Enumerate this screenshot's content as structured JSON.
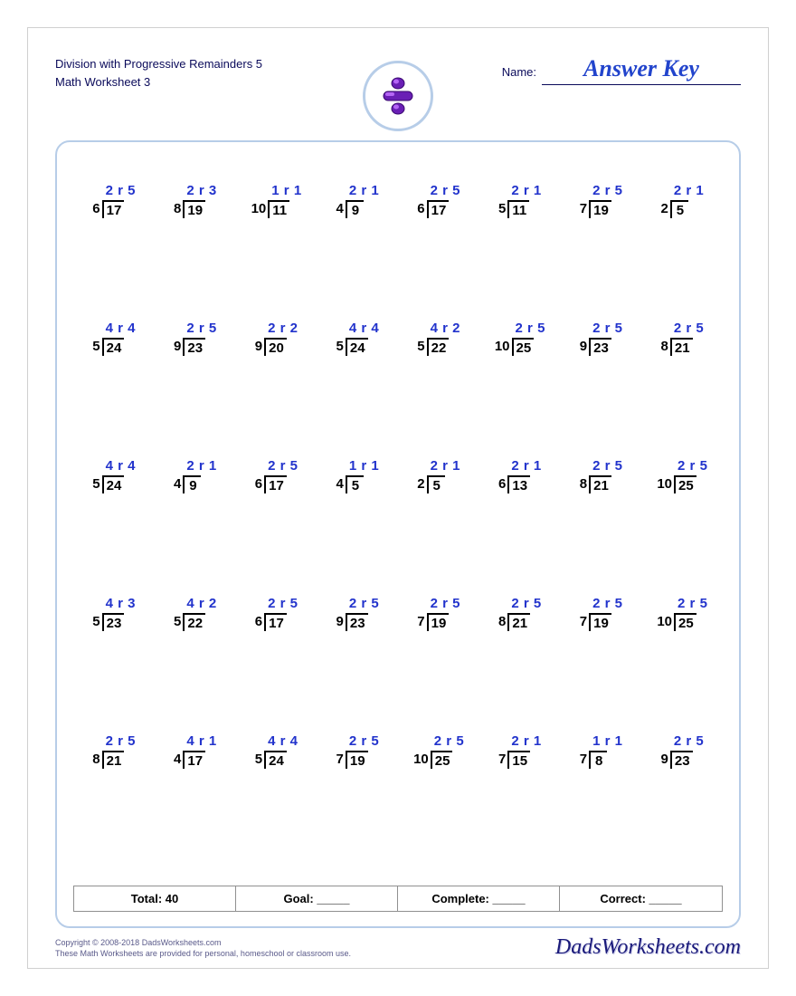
{
  "header": {
    "title_line1": "Division with Progressive Remainders 5",
    "title_line2": "Math Worksheet 3",
    "name_label": "Name:",
    "name_value": "Answer Key"
  },
  "colors": {
    "answer_color": "#2233cc",
    "title_color": "#0a0a5a",
    "frame_border": "#b7cde8",
    "text_color": "#000000"
  },
  "badge": {
    "primary": "#6a1fb5",
    "highlight": "#b565f5",
    "outline": "#3a0a70"
  },
  "problems": [
    [
      {
        "divisor": "6",
        "dividend": "17",
        "q": "2",
        "r": "5"
      },
      {
        "divisor": "8",
        "dividend": "19",
        "q": "2",
        "r": "3"
      },
      {
        "divisor": "10",
        "dividend": "11",
        "q": "1",
        "r": "1"
      },
      {
        "divisor": "4",
        "dividend": "9",
        "q": "2",
        "r": "1"
      },
      {
        "divisor": "6",
        "dividend": "17",
        "q": "2",
        "r": "5"
      },
      {
        "divisor": "5",
        "dividend": "11",
        "q": "2",
        "r": "1"
      },
      {
        "divisor": "7",
        "dividend": "19",
        "q": "2",
        "r": "5"
      },
      {
        "divisor": "2",
        "dividend": "5",
        "q": "2",
        "r": "1"
      }
    ],
    [
      {
        "divisor": "5",
        "dividend": "24",
        "q": "4",
        "r": "4"
      },
      {
        "divisor": "9",
        "dividend": "23",
        "q": "2",
        "r": "5"
      },
      {
        "divisor": "9",
        "dividend": "20",
        "q": "2",
        "r": "2"
      },
      {
        "divisor": "5",
        "dividend": "24",
        "q": "4",
        "r": "4"
      },
      {
        "divisor": "5",
        "dividend": "22",
        "q": "4",
        "r": "2"
      },
      {
        "divisor": "10",
        "dividend": "25",
        "q": "2",
        "r": "5"
      },
      {
        "divisor": "9",
        "dividend": "23",
        "q": "2",
        "r": "5"
      },
      {
        "divisor": "8",
        "dividend": "21",
        "q": "2",
        "r": "5"
      }
    ],
    [
      {
        "divisor": "5",
        "dividend": "24",
        "q": "4",
        "r": "4"
      },
      {
        "divisor": "4",
        "dividend": "9",
        "q": "2",
        "r": "1"
      },
      {
        "divisor": "6",
        "dividend": "17",
        "q": "2",
        "r": "5"
      },
      {
        "divisor": "4",
        "dividend": "5",
        "q": "1",
        "r": "1"
      },
      {
        "divisor": "2",
        "dividend": "5",
        "q": "2",
        "r": "1"
      },
      {
        "divisor": "6",
        "dividend": "13",
        "q": "2",
        "r": "1"
      },
      {
        "divisor": "8",
        "dividend": "21",
        "q": "2",
        "r": "5"
      },
      {
        "divisor": "10",
        "dividend": "25",
        "q": "2",
        "r": "5"
      }
    ],
    [
      {
        "divisor": "5",
        "dividend": "23",
        "q": "4",
        "r": "3"
      },
      {
        "divisor": "5",
        "dividend": "22",
        "q": "4",
        "r": "2"
      },
      {
        "divisor": "6",
        "dividend": "17",
        "q": "2",
        "r": "5"
      },
      {
        "divisor": "9",
        "dividend": "23",
        "q": "2",
        "r": "5"
      },
      {
        "divisor": "7",
        "dividend": "19",
        "q": "2",
        "r": "5"
      },
      {
        "divisor": "8",
        "dividend": "21",
        "q": "2",
        "r": "5"
      },
      {
        "divisor": "7",
        "dividend": "19",
        "q": "2",
        "r": "5"
      },
      {
        "divisor": "10",
        "dividend": "25",
        "q": "2",
        "r": "5"
      }
    ],
    [
      {
        "divisor": "8",
        "dividend": "21",
        "q": "2",
        "r": "5"
      },
      {
        "divisor": "4",
        "dividend": "17",
        "q": "4",
        "r": "1"
      },
      {
        "divisor": "5",
        "dividend": "24",
        "q": "4",
        "r": "4"
      },
      {
        "divisor": "7",
        "dividend": "19",
        "q": "2",
        "r": "5"
      },
      {
        "divisor": "10",
        "dividend": "25",
        "q": "2",
        "r": "5"
      },
      {
        "divisor": "7",
        "dividend": "15",
        "q": "2",
        "r": "1"
      },
      {
        "divisor": "7",
        "dividend": "8",
        "q": "1",
        "r": "1"
      },
      {
        "divisor": "9",
        "dividend": "23",
        "q": "2",
        "r": "5"
      }
    ]
  ],
  "stats": {
    "total_label": "Total: 40",
    "goal_label": "Goal: _____",
    "complete_label": "Complete: _____",
    "correct_label": "Correct: _____"
  },
  "footer": {
    "copyright_line1": "Copyright © 2008-2018 DadsWorksheets.com",
    "copyright_line2": "These Math Worksheets are provided for personal, homeschool or classroom use.",
    "brand": "DadsWorksheets.com"
  }
}
